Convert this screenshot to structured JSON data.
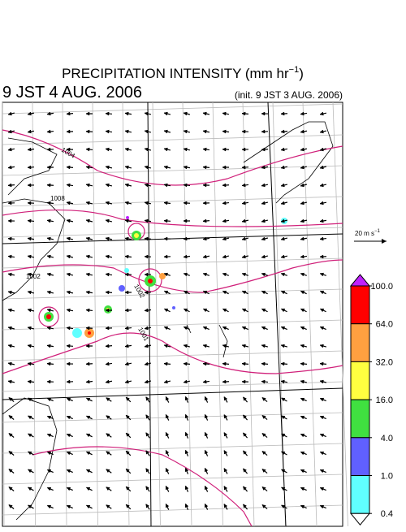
{
  "header": {
    "title": "PRECIPITATION INTENSITY (mm hr",
    "title_exponent": "−1",
    "title_end": ")",
    "valid_time": "9 JST 4 AUG. 2006",
    "init_time": "(init. 9 JST 3 AUG. 2006)"
  },
  "wind_reference": {
    "label": "20 m s",
    "exponent": "−1"
  },
  "isobar_labels": [
    "1004",
    "1008",
    "1002",
    "1002",
    "1001"
  ],
  "colorbar": {
    "levels": [
      {
        "value": 100,
        "label": "100.0"
      },
      {
        "value": 64,
        "label": "64.0"
      },
      {
        "value": 32,
        "label": "32.0"
      },
      {
        "value": 16,
        "label": "16.0"
      },
      {
        "value": 4,
        "label": "4.0"
      },
      {
        "value": 1,
        "label": "1.0"
      },
      {
        "value": 0.4,
        "label": "0.4"
      }
    ],
    "colors": [
      "#ff0000",
      "#ffa040",
      "#ffff40",
      "#40e040",
      "#6060ff",
      "#60ffff"
    ],
    "over_color": "#c020ff",
    "under_color": "#ffffff"
  }
}
